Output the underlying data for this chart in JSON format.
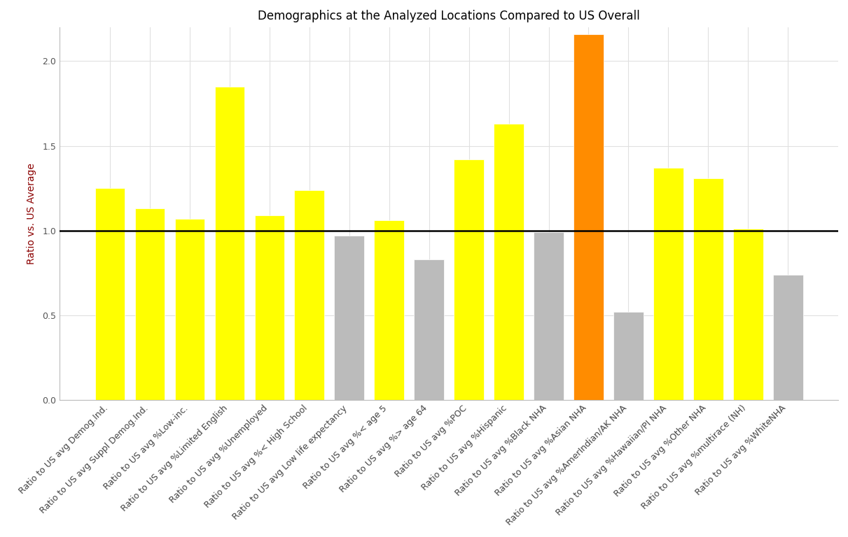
{
  "title": "Demographics at the Analyzed Locations Compared to US Overall",
  "ylabel": "Ratio vs. US Average",
  "categories": [
    "Ratio to US avg Demog.Ind.",
    "Ratio to US avg Suppl Demog.Ind.",
    "Ratio to US avg %Low-inc.",
    "Ratio to US avg %Limited English",
    "Ratio to US avg %Unemployed",
    "Ratio to US avg %< High School",
    "Ratio to US avg Low life expectancy",
    "Ratio to US avg %< age 5",
    "Ratio to US avg %> age 64",
    "Ratio to US avg %POC",
    "Ratio to US avg %Hispanic",
    "Ratio to US avg %Black NHA",
    "Ratio to US avg %Asian NHA",
    "Ratio to US avg %AmerIndian/AK NHA",
    "Ratio to US avg %Hawaiian/PI NHA",
    "Ratio to US avg %Other NHA",
    "Ratio to US avg %multirace (NH)",
    "Ratio to US avg %WhiteNHA"
  ],
  "values": [
    1.25,
    1.13,
    1.07,
    1.85,
    1.09,
    1.24,
    0.97,
    1.06,
    0.83,
    1.42,
    1.63,
    0.99,
    2.16,
    0.52,
    1.37,
    1.31,
    1.01,
    0.74
  ],
  "colors": [
    "#FFFF00",
    "#FFFF00",
    "#FFFF00",
    "#FFFF00",
    "#FFFF00",
    "#FFFF00",
    "#BBBBBB",
    "#FFFF00",
    "#BBBBBB",
    "#FFFF00",
    "#FFFF00",
    "#BBBBBB",
    "#FF8C00",
    "#BBBBBB",
    "#FFFF00",
    "#FFFF00",
    "#FFFF00",
    "#BBBBBB"
  ],
  "hline_y": 1.0,
  "ylim": [
    0.0,
    2.2
  ],
  "yticks": [
    0.0,
    0.5,
    1.0,
    1.5,
    2.0
  ],
  "background_color": "#FFFFFF",
  "grid_color": "#E0E0E0",
  "title_fontsize": 12,
  "tick_labelsize": 9,
  "ylabel_fontsize": 10,
  "ylabel_color": "#8B0000",
  "xtick_rotation": 45,
  "bar_width": 0.75
}
